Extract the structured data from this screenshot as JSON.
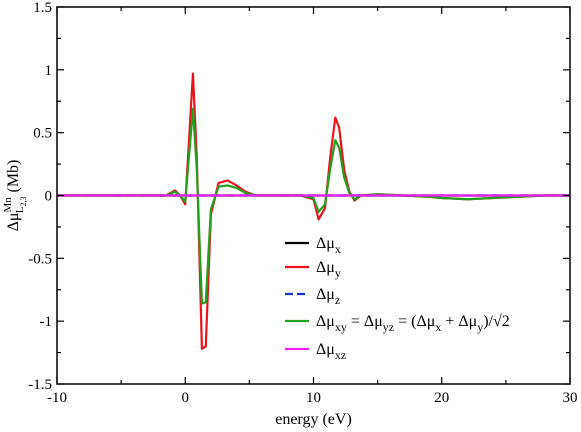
{
  "chart_data": {
    "type": "line",
    "xlabel": "energy (eV)",
    "ylabel": {
      "prefix": "Δμ",
      "sup": "Mn",
      "sub_main": "L",
      "sub_sub": "2,3",
      "suffix": " (Mb)"
    },
    "xlim": [
      -10,
      30
    ],
    "ylim": [
      -1.5,
      1.5
    ],
    "x_ticks": [
      -10,
      0,
      10,
      20,
      30
    ],
    "y_ticks": [
      -1.5,
      -1,
      -0.5,
      0,
      0.5,
      1,
      1.5
    ],
    "x_tick_labels": [
      "-10",
      "0",
      "10",
      "20",
      "30"
    ],
    "y_tick_labels": [
      "-1.5",
      "-1",
      "-0.5",
      "0",
      "0.5",
      "1",
      "1.5"
    ],
    "legend_position": "bottom-center",
    "series": [
      {
        "legend": [
          {
            "t": "Δμ"
          },
          {
            "t": "x",
            "sub": true
          }
        ],
        "color": "#000000",
        "dash": "solid",
        "x": [
          -10,
          30
        ],
        "y": [
          0,
          0
        ]
      },
      {
        "legend": [
          {
            "t": "Δμ"
          },
          {
            "t": "y",
            "sub": true
          }
        ],
        "color": "#e8141c",
        "dash": "solid",
        "x": [
          -10,
          -1.5,
          -0.8,
          -0.4,
          0,
          0.3,
          0.6,
          0.9,
          1.3,
          1.6,
          2.0,
          2.6,
          3.3,
          4.0,
          4.7,
          5.5,
          7,
          9,
          10,
          10.4,
          10.9,
          11.3,
          11.7,
          12.0,
          12.4,
          12.8,
          13.2,
          13.7,
          15,
          17,
          19,
          20,
          22,
          24,
          26,
          28,
          30
        ],
        "y": [
          0,
          0,
          0.04,
          0.0,
          -0.07,
          0.45,
          0.97,
          0.3,
          -1.22,
          -1.2,
          -0.15,
          0.1,
          0.12,
          0.08,
          0.03,
          0.0,
          0.0,
          0.0,
          -0.03,
          -0.19,
          -0.1,
          0.3,
          0.62,
          0.54,
          0.2,
          0.03,
          -0.04,
          0.0,
          0.01,
          0.0,
          -0.01,
          -0.02,
          -0.03,
          -0.02,
          -0.01,
          0.0,
          0.0
        ]
      },
      {
        "legend": [
          {
            "t": "Δμ"
          },
          {
            "t": "z",
            "sub": true
          }
        ],
        "color": "#1f2fd0",
        "dash": "dashed",
        "x": [
          -10,
          30
        ],
        "y": [
          0,
          0
        ]
      },
      {
        "legend": [
          {
            "t": "Δμ"
          },
          {
            "t": "xy",
            "sub": true
          },
          {
            "t": " = Δμ"
          },
          {
            "t": "yz",
            "sub": true
          },
          {
            "t": " = (Δμ"
          },
          {
            "t": "x",
            "sub": true
          },
          {
            "t": " + Δμ"
          },
          {
            "t": "y",
            "sub": true
          },
          {
            "t": ")/√2"
          }
        ],
        "color": "#22a020",
        "dash": "solid",
        "x": [
          -10,
          -1.5,
          -0.8,
          -0.4,
          0,
          0.3,
          0.6,
          0.9,
          1.3,
          1.6,
          2.0,
          2.6,
          3.3,
          4.0,
          4.7,
          5.5,
          7,
          9,
          10,
          10.4,
          10.9,
          11.3,
          11.7,
          12.0,
          12.4,
          12.8,
          13.2,
          13.7,
          15,
          17,
          19,
          20,
          22,
          24,
          26,
          28,
          30
        ],
        "y": [
          0,
          0,
          0.03,
          0.0,
          -0.05,
          0.32,
          0.69,
          0.21,
          -0.86,
          -0.85,
          -0.11,
          0.07,
          0.08,
          0.06,
          0.02,
          0.0,
          0.0,
          0.0,
          -0.02,
          -0.13,
          -0.07,
          0.21,
          0.44,
          0.38,
          0.14,
          0.02,
          -0.03,
          0.0,
          0.01,
          0.0,
          -0.01,
          -0.02,
          -0.03,
          -0.02,
          -0.01,
          0.0,
          0.0
        ]
      },
      {
        "legend": [
          {
            "t": "Δμ"
          },
          {
            "t": "xz",
            "sub": true
          }
        ],
        "color": "#f020f0",
        "dash": "solid",
        "x": [
          -10,
          30
        ],
        "y": [
          0,
          0
        ]
      }
    ]
  }
}
